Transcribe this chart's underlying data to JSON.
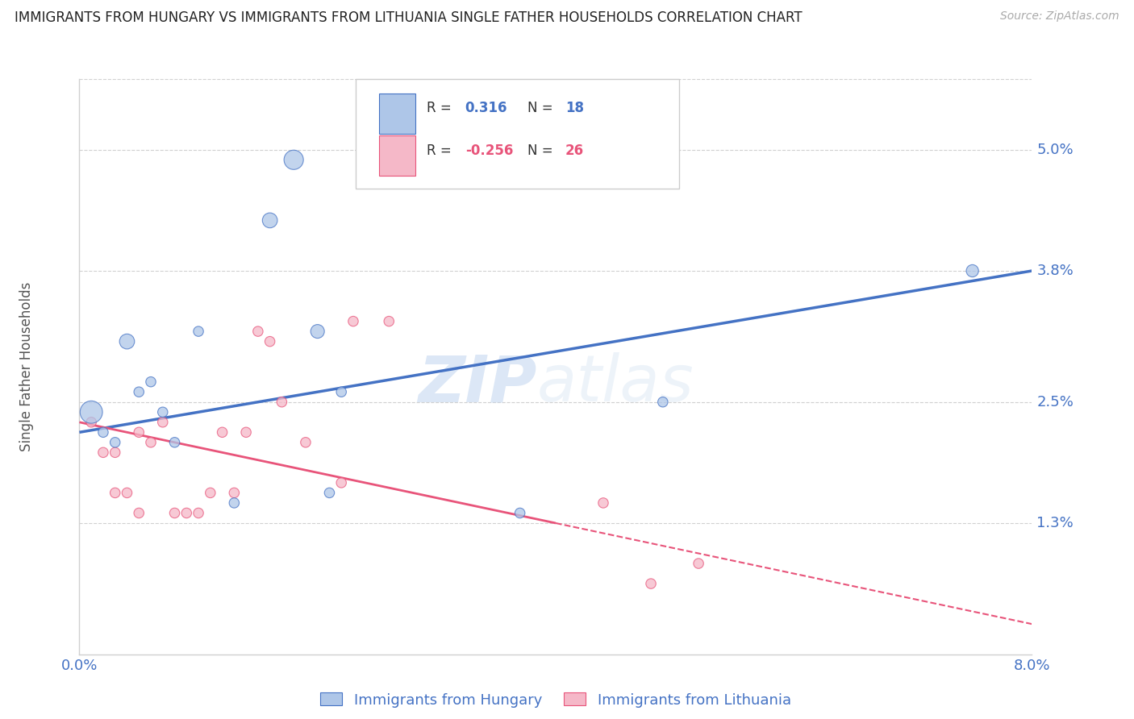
{
  "title": "IMMIGRANTS FROM HUNGARY VS IMMIGRANTS FROM LITHUANIA SINGLE FATHER HOUSEHOLDS CORRELATION CHART",
  "source": "Source: ZipAtlas.com",
  "ylabel": "Single Father Households",
  "legend_label_1": "Immigrants from Hungary",
  "legend_label_2": "Immigrants from Lithuania",
  "r1": 0.316,
  "n1": 18,
  "r2": -0.256,
  "n2": 26,
  "color_blue": "#aec6e8",
  "color_pink": "#f5b8c8",
  "line_color_blue": "#4472c4",
  "line_color_pink": "#e8547a",
  "xlim": [
    0.0,
    0.08
  ],
  "ylim": [
    0.0,
    0.057
  ],
  "right_yticks": [
    0.013,
    0.025,
    0.038,
    0.05
  ],
  "right_yticklabels": [
    "1.3%",
    "2.5%",
    "3.8%",
    "5.0%"
  ],
  "xticks": [
    0.0,
    0.01,
    0.02,
    0.03,
    0.04,
    0.05,
    0.06,
    0.07,
    0.08
  ],
  "xticklabels": [
    "0.0%",
    "",
    "",
    "",
    "",
    "",
    "",
    "",
    "8.0%"
  ],
  "hungary_x": [
    0.001,
    0.002,
    0.003,
    0.004,
    0.005,
    0.006,
    0.007,
    0.008,
    0.01,
    0.013,
    0.016,
    0.018,
    0.02,
    0.021,
    0.022,
    0.037,
    0.049,
    0.075
  ],
  "hungary_y": [
    0.024,
    0.022,
    0.021,
    0.031,
    0.026,
    0.027,
    0.024,
    0.021,
    0.032,
    0.015,
    0.043,
    0.049,
    0.032,
    0.016,
    0.026,
    0.014,
    0.025,
    0.038
  ],
  "hungary_size": [
    400,
    80,
    80,
    180,
    80,
    80,
    80,
    80,
    80,
    80,
    180,
    300,
    150,
    80,
    80,
    80,
    80,
    120
  ],
  "lithuania_x": [
    0.001,
    0.002,
    0.003,
    0.003,
    0.004,
    0.005,
    0.005,
    0.006,
    0.007,
    0.008,
    0.009,
    0.01,
    0.011,
    0.012,
    0.013,
    0.014,
    0.015,
    0.016,
    0.017,
    0.019,
    0.022,
    0.023,
    0.026,
    0.044,
    0.048,
    0.052
  ],
  "lithuania_y": [
    0.023,
    0.02,
    0.02,
    0.016,
    0.016,
    0.022,
    0.014,
    0.021,
    0.023,
    0.014,
    0.014,
    0.014,
    0.016,
    0.022,
    0.016,
    0.022,
    0.032,
    0.031,
    0.025,
    0.021,
    0.017,
    0.033,
    0.033,
    0.015,
    0.007,
    0.009
  ],
  "lithuania_size": [
    80,
    80,
    80,
    80,
    80,
    80,
    80,
    80,
    80,
    80,
    80,
    80,
    80,
    80,
    80,
    80,
    80,
    80,
    80,
    80,
    80,
    80,
    80,
    80,
    80,
    80
  ],
  "blue_line_x0": 0.0,
  "blue_line_y0": 0.022,
  "blue_line_x1": 0.08,
  "blue_line_y1": 0.038,
  "pink_line_x0": 0.0,
  "pink_line_y0": 0.023,
  "pink_line_x1_solid": 0.04,
  "pink_line_y1_solid": 0.013,
  "pink_line_x1_dash": 0.08,
  "pink_line_y1_dash": 0.003,
  "watermark_zip": "ZIP",
  "watermark_atlas": "atlas",
  "bg_color": "#ffffff"
}
